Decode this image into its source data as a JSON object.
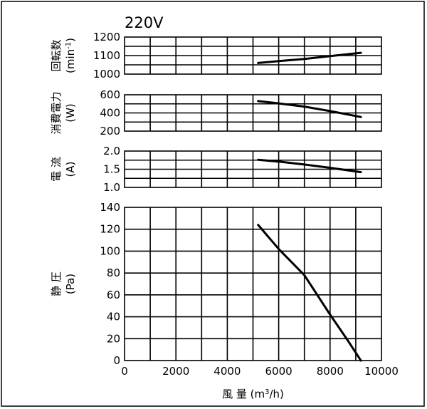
{
  "chart_data": {
    "type": "line",
    "voltage_label": "220V",
    "x_axis": {
      "label_main": "風 量 (m",
      "label_sup": "3",
      "label_end": "/h)",
      "ticks": [
        "0",
        "2000",
        "4000",
        "6000",
        "8000",
        "10000"
      ],
      "range": [
        0,
        10000
      ]
    },
    "panels": [
      {
        "id": "rpm",
        "title": "回転数",
        "unit_main": "(min",
        "unit_sup": "-1",
        "unit_end": ")",
        "ylim": [
          1000,
          1200
        ],
        "ticks": [
          "1000",
          "1100",
          "1200"
        ],
        "series": [
          {
            "x": [
              5200,
              6000,
              7000,
              8000,
              9200
            ],
            "y": [
              1060,
              1070,
              1082,
              1097,
              1115
            ]
          }
        ]
      },
      {
        "id": "power",
        "title": "消費電力",
        "unit_main": "(W)",
        "ylim": [
          200,
          600
        ],
        "ticks": [
          "200",
          "400",
          "600"
        ],
        "series": [
          {
            "x": [
              5200,
              6000,
              7000,
              8000,
              9200
            ],
            "y": [
              530,
              505,
              470,
              420,
              355
            ]
          }
        ]
      },
      {
        "id": "current",
        "title": "電 流",
        "unit_main": "(A)",
        "ylim": [
          1.0,
          2.0
        ],
        "ticks": [
          "1.0",
          "1.5",
          "2.0"
        ],
        "series": [
          {
            "x": [
              5200,
              6000,
              7000,
              8000,
              9200
            ],
            "y": [
              1.76,
              1.71,
              1.63,
              1.54,
              1.42
            ]
          }
        ]
      },
      {
        "id": "pressure",
        "title": "静 圧",
        "unit_main": "(Pa)",
        "ylim": [
          0,
          140
        ],
        "ticks": [
          "0",
          "20",
          "40",
          "60",
          "80",
          "100",
          "120",
          "140"
        ],
        "series": [
          {
            "x": [
              5200,
              6000,
              7000,
              8000,
              8700,
              9200
            ],
            "y": [
              124,
              102,
              78,
              42,
              18,
              0
            ]
          }
        ]
      }
    ]
  }
}
